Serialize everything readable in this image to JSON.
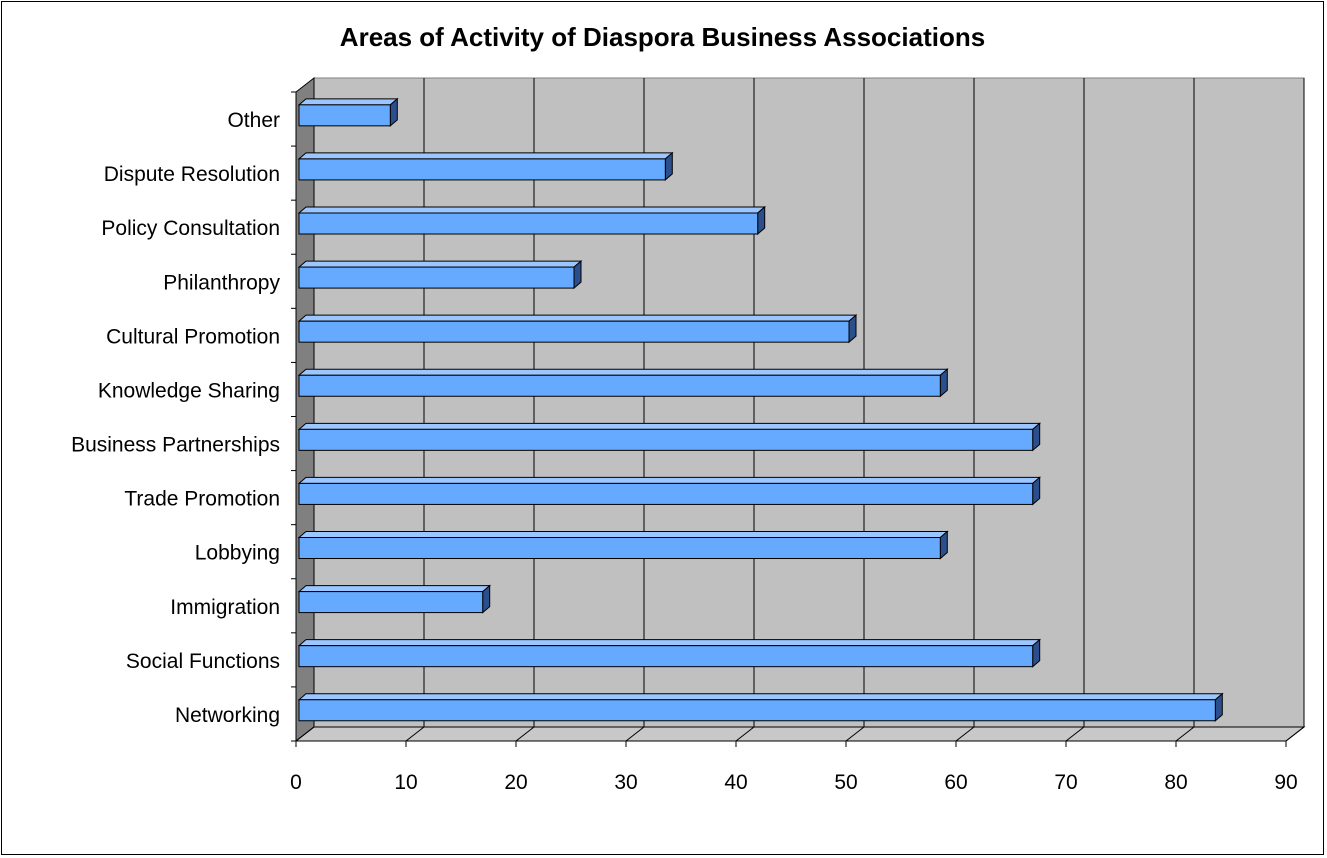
{
  "chart_data": {
    "type": "bar",
    "orientation": "horizontal",
    "style": "3d",
    "title": "Areas of Activity of Diaspora Business Associations",
    "xlabel": "",
    "ylabel": "",
    "categories": [
      "Networking",
      "Social Functions",
      "Immigration",
      "Lobbying",
      "Trade Promotion",
      "Business Partnerships",
      "Knowledge Sharing",
      "Cultural Promotion",
      "Philanthropy",
      "Policy Consultation",
      "Dispute Resolution",
      "Other"
    ],
    "values": [
      83.3,
      66.7,
      16.7,
      58.3,
      66.7,
      66.7,
      58.3,
      50,
      25,
      41.7,
      33.3,
      8.3
    ],
    "xlim": [
      0,
      90
    ],
    "xticks": [
      "0",
      "10",
      "20",
      "30",
      "40",
      "50",
      "60",
      "70",
      "80",
      "90"
    ],
    "grid": true,
    "legend": "none",
    "colors": {
      "bar_front": "#66aaff",
      "bar_top": "#9cc6ff",
      "bar_side": "#2b4f8c",
      "plot_back": "#c0c0c0",
      "plot_left_wall": "#808080",
      "plot_floor": "#c8c8c8",
      "gridline": "#000000"
    }
  }
}
